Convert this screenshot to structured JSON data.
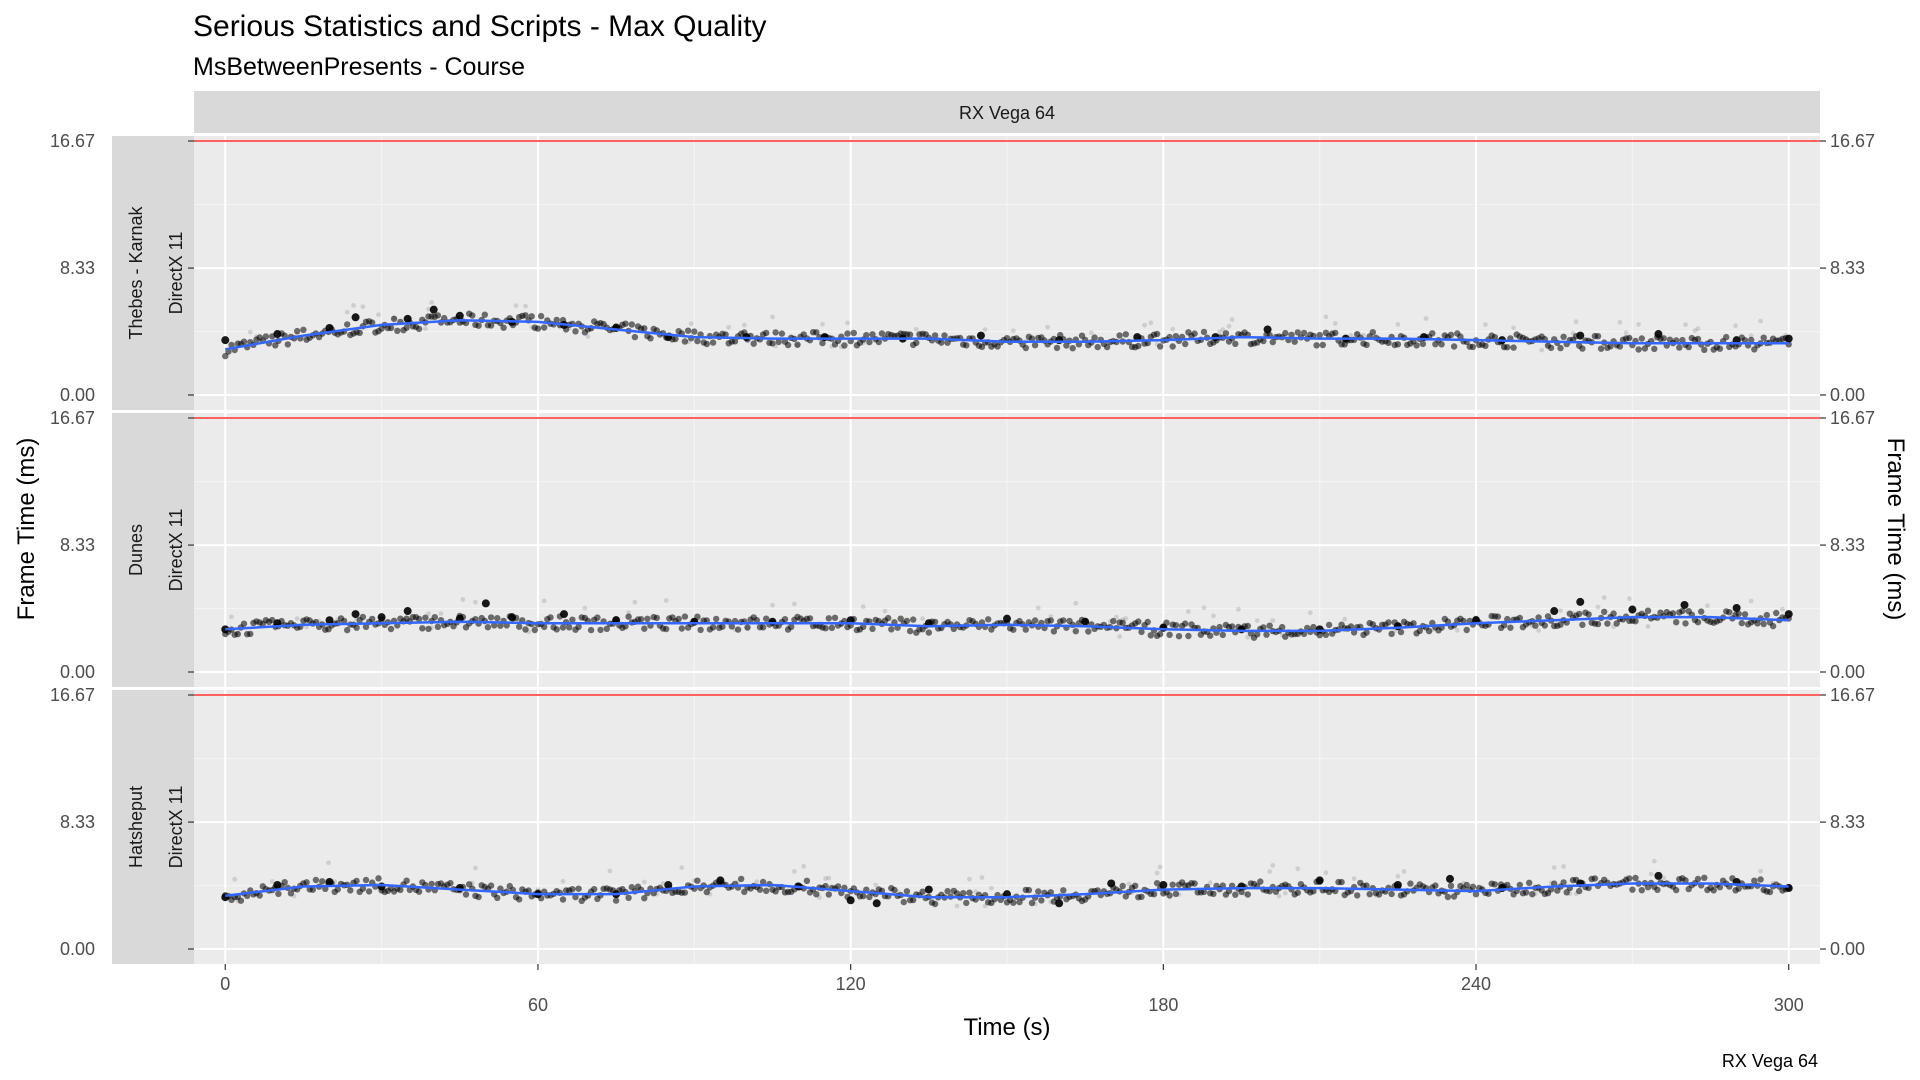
{
  "chart_data": {
    "type": "scatter",
    "title": "Serious Statistics and Scripts - Max Quality",
    "subtitle": "MsBetweenPresents - Course",
    "column_strip": "RX Vega 64",
    "xlabel": "Time (s)",
    "ylabel": "Frame Time (ms)",
    "ylabel_right": "Frame Time (ms)",
    "caption": "RX Vega 64",
    "xlim": [
      -6,
      306
    ],
    "ylim": [
      0,
      16.67
    ],
    "x_ticks": [
      0,
      60,
      120,
      180,
      240,
      300
    ],
    "x_tick_labels": [
      "0",
      "60",
      "120",
      "180",
      "240",
      "300"
    ],
    "y_ticks": [
      0,
      8.33,
      16.67
    ],
    "y_tick_labels": [
      "0.00",
      "8.33",
      "16.67"
    ],
    "reference_line": {
      "y": 16.67,
      "color": "#ff0000"
    },
    "grid": true,
    "colors": {
      "panel_bg": "#ebebeb",
      "strip_bg": "#d9d9d9",
      "points": "#000000",
      "smooth": "#3366ff",
      "reference": "#ff0000"
    },
    "panels": [
      {
        "strip_lines": [
          "Thebes - Karnak",
          "DirectX 11"
        ],
        "smooth": {
          "x": [
            0,
            15,
            30,
            45,
            60,
            75,
            90,
            105,
            120,
            135,
            150,
            165,
            180,
            195,
            210,
            225,
            240,
            255,
            270,
            285,
            300
          ],
          "y": [
            3.0,
            3.9,
            4.6,
            4.9,
            4.8,
            4.3,
            3.8,
            3.7,
            3.7,
            3.7,
            3.5,
            3.5,
            3.6,
            3.8,
            3.7,
            3.7,
            3.6,
            3.5,
            3.4,
            3.4,
            3.4
          ]
        },
        "points": {
          "x": [
            0,
            10,
            20,
            25,
            35,
            40,
            45,
            55,
            65,
            75,
            85,
            100,
            115,
            130,
            145,
            160,
            175,
            190,
            200,
            215,
            230,
            245,
            260,
            275,
            290,
            300
          ],
          "y": [
            3.6,
            4.0,
            4.4,
            5.1,
            5.0,
            5.6,
            5.2,
            4.8,
            4.6,
            4.4,
            3.8,
            3.8,
            3.8,
            3.7,
            3.9,
            3.6,
            3.8,
            3.8,
            4.3,
            3.7,
            3.8,
            3.6,
            3.9,
            4.0,
            3.6,
            3.7
          ]
        }
      },
      {
        "strip_lines": [
          "Dunes",
          "DirectX 11"
        ],
        "smooth": {
          "x": [
            0,
            15,
            30,
            45,
            60,
            75,
            90,
            105,
            120,
            135,
            150,
            165,
            180,
            195,
            210,
            225,
            240,
            255,
            270,
            285,
            300
          ],
          "y": [
            2.8,
            3.1,
            3.2,
            3.3,
            3.2,
            3.2,
            3.2,
            3.2,
            3.2,
            3.0,
            3.1,
            3.0,
            2.8,
            2.7,
            2.7,
            2.9,
            3.2,
            3.4,
            3.6,
            3.6,
            3.4
          ]
        },
        "points": {
          "x": [
            0,
            10,
            20,
            25,
            30,
            35,
            45,
            50,
            55,
            65,
            75,
            90,
            105,
            120,
            135,
            150,
            165,
            180,
            195,
            210,
            225,
            240,
            255,
            260,
            270,
            280,
            290,
            300
          ],
          "y": [
            2.8,
            3.2,
            3.4,
            3.8,
            3.6,
            4.0,
            3.5,
            4.5,
            3.6,
            3.8,
            3.4,
            3.3,
            3.3,
            3.4,
            3.2,
            3.5,
            3.3,
            2.9,
            2.8,
            2.8,
            3.0,
            3.4,
            4.0,
            4.6,
            4.1,
            4.4,
            4.2,
            3.8
          ]
        }
      },
      {
        "strip_lines": [
          "Hatsheput",
          "DirectX 11"
        ],
        "smooth": {
          "x": [
            0,
            15,
            30,
            45,
            60,
            75,
            90,
            105,
            120,
            135,
            150,
            165,
            180,
            195,
            210,
            225,
            240,
            255,
            270,
            285,
            300
          ],
          "y": [
            3.5,
            4.1,
            4.2,
            3.9,
            3.6,
            3.6,
            4.1,
            4.2,
            3.8,
            3.4,
            3.4,
            3.6,
            3.9,
            4.0,
            4.0,
            3.9,
            3.8,
            4.1,
            4.3,
            4.3,
            4.1
          ]
        },
        "points": {
          "x": [
            0,
            10,
            20,
            30,
            45,
            60,
            75,
            85,
            95,
            110,
            120,
            125,
            135,
            150,
            160,
            170,
            180,
            195,
            210,
            225,
            235,
            245,
            260,
            275,
            290,
            300
          ],
          "y": [
            3.4,
            4.2,
            4.4,
            4.1,
            4.0,
            3.6,
            3.6,
            4.2,
            4.5,
            4.1,
            3.2,
            3.0,
            3.9,
            3.6,
            3.0,
            4.3,
            4.2,
            4.1,
            4.5,
            4.2,
            4.6,
            4.0,
            4.3,
            4.8,
            4.4,
            4.0
          ]
        }
      }
    ]
  }
}
